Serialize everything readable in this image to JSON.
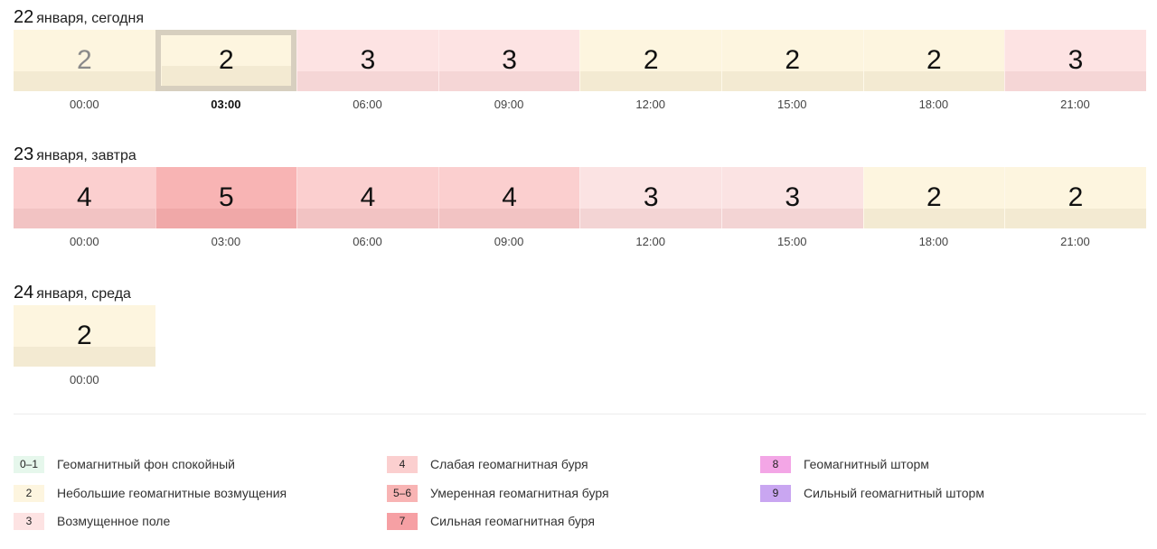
{
  "days": [
    {
      "date_num": "22",
      "date_label": "января, сегодня",
      "slots": [
        {
          "value": "2",
          "time": "00:00",
          "level": "l2",
          "state": "past"
        },
        {
          "value": "2",
          "time": "03:00",
          "level": "l2",
          "state": "current"
        },
        {
          "value": "3",
          "time": "06:00",
          "level": "l3",
          "state": ""
        },
        {
          "value": "3",
          "time": "09:00",
          "level": "l3",
          "state": ""
        },
        {
          "value": "2",
          "time": "12:00",
          "level": "l2",
          "state": ""
        },
        {
          "value": "2",
          "time": "15:00",
          "level": "l2",
          "state": ""
        },
        {
          "value": "2",
          "time": "18:00",
          "level": "l2",
          "state": ""
        },
        {
          "value": "3",
          "time": "21:00",
          "level": "l3",
          "state": ""
        }
      ]
    },
    {
      "date_num": "23",
      "date_label": "января, завтра",
      "slots": [
        {
          "value": "4",
          "time": "00:00",
          "level": "l4",
          "state": ""
        },
        {
          "value": "5",
          "time": "03:00",
          "level": "l5",
          "state": ""
        },
        {
          "value": "4",
          "time": "06:00",
          "level": "l4",
          "state": ""
        },
        {
          "value": "4",
          "time": "09:00",
          "level": "l4",
          "state": ""
        },
        {
          "value": "3",
          "time": "12:00",
          "level": "l3b",
          "state": ""
        },
        {
          "value": "3",
          "time": "15:00",
          "level": "l3b",
          "state": ""
        },
        {
          "value": "2",
          "time": "18:00",
          "level": "l2",
          "state": ""
        },
        {
          "value": "2",
          "time": "21:00",
          "level": "l2",
          "state": ""
        }
      ]
    },
    {
      "date_num": "24",
      "date_label": "января, среда",
      "slots": [
        {
          "value": "2",
          "time": "00:00",
          "level": "l2",
          "state": ""
        }
      ]
    }
  ],
  "legend": [
    {
      "badge": "0–1",
      "label": "Геомагнитный фон спокойный",
      "color": "#e6f7ec"
    },
    {
      "badge": "2",
      "label": "Небольшие геомагнитные возмущения",
      "color": "#fdf5df"
    },
    {
      "badge": "3",
      "label": "Возмущенное поле",
      "color": "#fde3e3"
    },
    {
      "badge": "4",
      "label": "Слабая геомагнитная буря",
      "color": "#fbcfcf"
    },
    {
      "badge": "5–6",
      "label": "Умеренная геомагнитная буря",
      "color": "#f8b4b4"
    },
    {
      "badge": "7",
      "label": "Сильная геомагнитная буря",
      "color": "#f6a0a4"
    },
    {
      "badge": "8",
      "label": "Геомагнитный шторм",
      "color": "#f3a6e6"
    },
    {
      "badge": "9",
      "label": "Сильный геомагнитный шторм",
      "color": "#c9a6f1"
    }
  ]
}
